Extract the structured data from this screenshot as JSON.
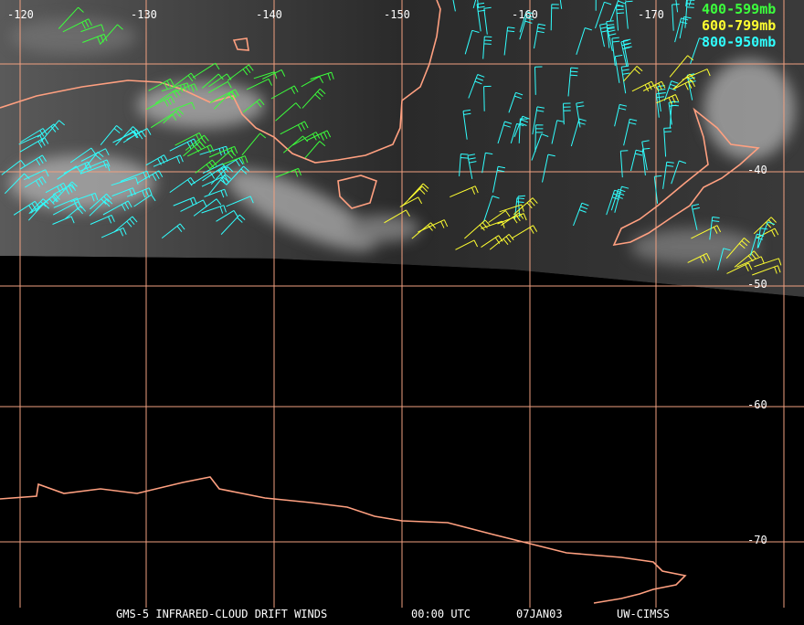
{
  "map": {
    "lon_labels": [
      "-120",
      "-130",
      "-140",
      "-150",
      "-160",
      "-170"
    ],
    "lat_labels": [
      "-40",
      "-50",
      "-60",
      "-70"
    ],
    "legend": [
      {
        "label": "400-599mb",
        "color": "#3cff3c"
      },
      {
        "label": "600-799mb",
        "color": "#ffff30"
      },
      {
        "label": "800-950mb",
        "color": "#30ffff"
      }
    ],
    "footer": [
      "GMS-5 INFRARED-CLOUD DRIFT WINDS",
      "00:00 UTC",
      "07JAN03",
      "UW-CIMSS"
    ]
  }
}
